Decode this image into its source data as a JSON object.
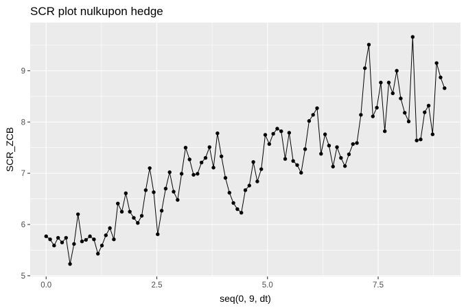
{
  "chart_data": {
    "type": "line",
    "title": "SCR plot nulkupon hedge",
    "xlabel": "seq(0, 9, dt)",
    "ylabel": "SCR_ZCB",
    "xlim": [
      -0.36,
      9.36
    ],
    "ylim": [
      4.985,
      9.94
    ],
    "x_ticks": [
      0,
      2.5,
      5,
      7.5
    ],
    "x_tick_labels": [
      "0.0",
      "2.5",
      "5.0",
      "7.5"
    ],
    "y_ticks": [
      5,
      6,
      7,
      8,
      9
    ],
    "y_tick_labels": [
      "5",
      "6",
      "7",
      "8",
      "9"
    ],
    "grid": true,
    "colors": {
      "panel": "#ebebeb",
      "grid_major": "#ffffff",
      "line": "#000000",
      "point": "#000000"
    },
    "series": [
      {
        "x": [
          0,
          0.09,
          0.18,
          0.27,
          0.36,
          0.45,
          0.54,
          0.63,
          0.72,
          0.81,
          0.9,
          0.99,
          1.08,
          1.17,
          1.26,
          1.35,
          1.44,
          1.53,
          1.62,
          1.71,
          1.8,
          1.89,
          1.98,
          2.07,
          2.16,
          2.25,
          2.34,
          2.43,
          2.52,
          2.61,
          2.7,
          2.79,
          2.88,
          2.97,
          3.06,
          3.15,
          3.24,
          3.33,
          3.42,
          3.51,
          3.6,
          3.69,
          3.78,
          3.87,
          3.96,
          4.05,
          4.14,
          4.23,
          4.32,
          4.41,
          4.5,
          4.59,
          4.68,
          4.77,
          4.86,
          4.95,
          5.04,
          5.13,
          5.22,
          5.31,
          5.4,
          5.49,
          5.58,
          5.67,
          5.76,
          5.85,
          5.94,
          6.03,
          6.12,
          6.21,
          6.3,
          6.39,
          6.48,
          6.57,
          6.66,
          6.75,
          6.84,
          6.93,
          7.02,
          7.11,
          7.2,
          7.29,
          7.38,
          7.47,
          7.56,
          7.65,
          7.74,
          7.83,
          7.92,
          8.01,
          8.1,
          8.19,
          8.28,
          8.37,
          8.46,
          8.55,
          8.64,
          8.73,
          8.82,
          8.91,
          9.0
        ],
        "values": [
          5.77,
          5.71,
          5.59,
          5.74,
          5.65,
          5.74,
          5.23,
          5.62,
          6.2,
          5.67,
          5.7,
          5.77,
          5.71,
          5.43,
          5.59,
          5.79,
          5.93,
          5.71,
          6.41,
          6.25,
          6.61,
          6.25,
          6.13,
          6.03,
          6.17,
          6.67,
          7.1,
          6.63,
          5.81,
          6.27,
          6.7,
          7.02,
          6.64,
          6.48,
          6.99,
          7.5,
          7.27,
          6.97,
          6.99,
          7.21,
          7.3,
          7.51,
          7.11,
          7.78,
          7.33,
          6.91,
          6.62,
          6.42,
          6.3,
          6.23,
          6.67,
          6.76,
          7.22,
          6.84,
          7.08,
          7.75,
          7.57,
          7.77,
          7.87,
          7.82,
          7.28,
          7.79,
          7.24,
          7.16,
          7.01,
          7.47,
          8.02,
          8.14,
          8.27,
          7.38,
          7.76,
          7.54,
          7.13,
          7.51,
          7.3,
          7.14,
          7.37,
          7.57,
          7.59,
          8.14,
          9.05,
          9.51,
          8.11,
          8.28,
          8.77,
          7.82,
          8.77,
          8.56,
          9.0,
          8.46,
          8.18,
          8.01,
          9.66,
          7.64,
          7.66,
          8.19,
          8.32,
          7.76,
          9.15,
          8.87,
          8.66
        ]
      }
    ]
  }
}
